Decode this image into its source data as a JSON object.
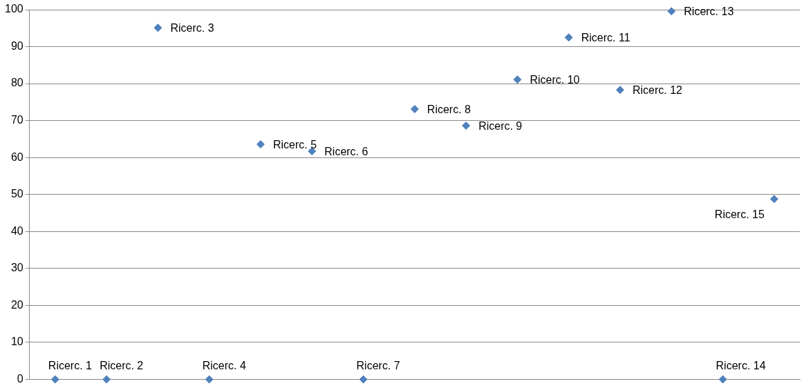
{
  "chart_data": {
    "type": "scatter",
    "categories": [
      null,
      null,
      null,
      null,
      null,
      null,
      null,
      null,
      null,
      null,
      null,
      null,
      null,
      null,
      null
    ],
    "series": [
      {
        "color": "#4f81bd",
        "values": [
          0,
          0,
          95.1,
          0,
          63.6,
          61.7,
          0,
          73.1,
          68.6,
          81.1,
          92.5,
          78.3,
          99.6,
          0,
          48.8
        ]
      }
    ],
    "annotations": [
      "Ricerc. 1",
      "Ricerc. 2",
      "Ricerc. 3",
      "Ricerc. 4",
      "Ricerc. 5",
      "Ricerc. 6",
      "Ricerc. 7",
      "Ricerc. 8",
      "Ricerc. 9",
      "Ricerc. 10",
      "Ricerc. 11",
      "Ricerc. 12",
      "Ricerc. 13",
      "Ricerc. 14",
      "Ricerc. 15"
    ],
    "ylim": [
      0,
      100
    ],
    "yticks": [
      0,
      10,
      20,
      30,
      40,
      50,
      60,
      70,
      80,
      90,
      100
    ],
    "grid": "y",
    "marker": "diamond",
    "tick_labels": "y",
    "legend": false
  }
}
